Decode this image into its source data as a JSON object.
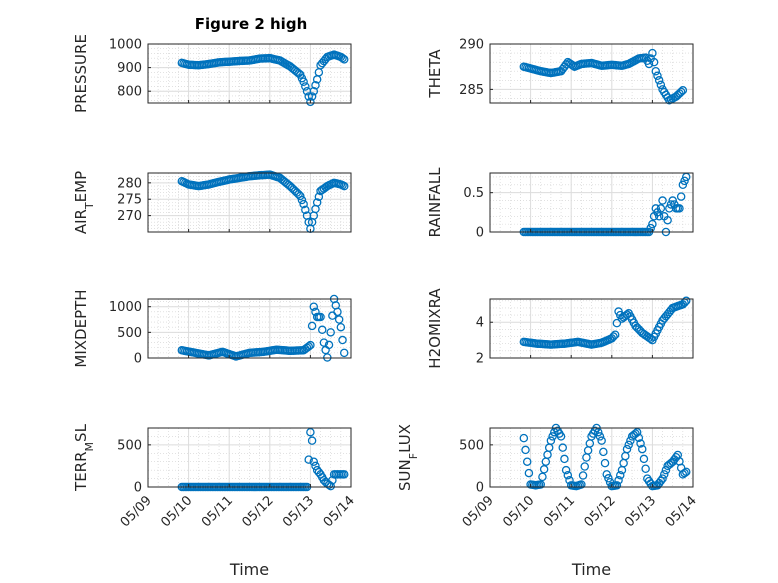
{
  "figure": {
    "title": "Figure 2 high",
    "marker_color": "#0072BD"
  },
  "chart_data": [
    {
      "type": "scatter",
      "title": "Figure 2 high",
      "ylabel": "PRESSURE",
      "xlabel": "",
      "xlim": [
        "05/09",
        "05/14"
      ],
      "ylim": [
        750,
        1000
      ],
      "yticks": [
        800,
        900,
        1000
      ],
      "grid": true,
      "x": [
        "05/09 20:00",
        "05/10 00:00",
        "05/10 06:00",
        "05/10 12:00",
        "05/10 18:00",
        "05/11 00:00",
        "05/11 06:00",
        "05/11 12:00",
        "05/11 18:00",
        "05/12 00:00",
        "05/12 06:00",
        "05/12 12:00",
        "05/12 18:00",
        "05/12 20:00",
        "05/12 22:00",
        "05/13 00:00",
        "05/13 02:00",
        "05/13 04:00",
        "05/13 06:00",
        "05/13 10:00",
        "05/13 14:00",
        "05/13 18:00",
        "05/13 20:00"
      ],
      "y": [
        920,
        912,
        910,
        915,
        922,
        925,
        928,
        930,
        938,
        940,
        930,
        905,
        870,
        840,
        800,
        755,
        800,
        850,
        910,
        945,
        955,
        945,
        935
      ]
    },
    {
      "type": "scatter",
      "title": "",
      "ylabel": "THETA",
      "xlabel": "",
      "xlim": [
        "05/09",
        "05/14"
      ],
      "ylim": [
        283.5,
        290
      ],
      "yticks": [
        285,
        290
      ],
      "grid": true,
      "x": [
        "05/09 20:00",
        "05/10 00:00",
        "05/10 06:00",
        "05/10 12:00",
        "05/10 18:00",
        "05/10 22:00",
        "05/11 02:00",
        "05/11 06:00",
        "05/11 12:00",
        "05/11 18:00",
        "05/12 00:00",
        "05/12 06:00",
        "05/12 10:00",
        "05/12 16:00",
        "05/12 20:00",
        "05/12 22:00",
        "05/13 00:00",
        "05/13 02:00",
        "05/13 06:00",
        "05/13 10:00",
        "05/13 14:00",
        "05/13 18:00"
      ],
      "y": [
        287.5,
        287.3,
        287.0,
        286.8,
        287.0,
        288.0,
        287.5,
        287.8,
        287.9,
        287.6,
        287.7,
        287.6,
        287.8,
        288.4,
        288.5,
        287.8,
        289.0,
        287.0,
        285.0,
        283.8,
        284.2,
        284.9
      ]
    },
    {
      "type": "scatter",
      "title": "",
      "ylabel": "AIR_TEMP",
      "xlabel": "",
      "xlim": [
        "05/09",
        "05/14"
      ],
      "ylim": [
        265,
        283
      ],
      "yticks": [
        270,
        275,
        280
      ],
      "grid": true,
      "x": [
        "05/09 20:00",
        "05/10 00:00",
        "05/10 06:00",
        "05/10 12:00",
        "05/10 18:00",
        "05/11 00:00",
        "05/11 06:00",
        "05/11 12:00",
        "05/11 18:00",
        "05/12 00:00",
        "05/12 06:00",
        "05/12 12:00",
        "05/12 18:00",
        "05/12 20:00",
        "05/12 22:00",
        "05/13 00:00",
        "05/13 02:00",
        "05/13 04:00",
        "05/13 06:00",
        "05/13 10:00",
        "05/13 14:00",
        "05/13 18:00",
        "05/13 20:00"
      ],
      "y": [
        280.5,
        279.5,
        279.0,
        279.5,
        280.3,
        281.0,
        281.5,
        282.0,
        282.3,
        282.5,
        281.5,
        279.0,
        276.0,
        273.5,
        270.0,
        266.0,
        270.0,
        274.0,
        277.5,
        279.0,
        280.0,
        279.5,
        279.0
      ]
    },
    {
      "type": "scatter",
      "title": "",
      "ylabel": "RAINFALL",
      "xlabel": "",
      "xlim": [
        "05/09",
        "05/14"
      ],
      "ylim": [
        0,
        0.75
      ],
      "yticks": [
        0,
        0.5
      ],
      "grid": true,
      "x": [
        "05/09 20:00",
        "05/10 12:00",
        "05/11 12:00",
        "05/12 12:00",
        "05/12 22:00",
        "05/13 00:00",
        "05/13 02:00",
        "05/13 04:00",
        "05/13 06:00",
        "05/13 08:00",
        "05/13 10:00",
        "05/13 12:00",
        "05/13 14:00",
        "05/13 16:00",
        "05/13 18:00",
        "05/13 20:00"
      ],
      "y": [
        0,
        0,
        0,
        0,
        0,
        0.1,
        0.3,
        0.2,
        0.4,
        0.0,
        0.3,
        0.4,
        0.3,
        0.3,
        0.6,
        0.7
      ]
    },
    {
      "type": "scatter",
      "title": "",
      "ylabel": "MIXDEPTH",
      "xlabel": "",
      "xlim": [
        "05/09",
        "05/14"
      ],
      "ylim": [
        0,
        1150
      ],
      "yticks": [
        0,
        500,
        1000
      ],
      "grid": true,
      "x": [
        "05/09 20:00",
        "05/10 04:00",
        "05/10 12:00",
        "05/10 20:00",
        "05/11 04:00",
        "05/11 12:00",
        "05/11 20:00",
        "05/12 04:00",
        "05/12 12:00",
        "05/12 20:00",
        "05/13 00:00",
        "05/13 02:00",
        "05/13 04:00",
        "05/13 06:00",
        "05/13 08:00",
        "05/13 10:00",
        "05/13 12:00",
        "05/13 14:00",
        "05/13 16:00",
        "05/13 18:00",
        "05/13 20:00"
      ],
      "y": [
        150,
        100,
        50,
        120,
        30,
        100,
        120,
        160,
        140,
        150,
        250,
        1000,
        800,
        800,
        300,
        10,
        500,
        1150,
        900,
        600,
        100
      ]
    },
    {
      "type": "scatter",
      "title": "",
      "ylabel": "H2OMIXRA",
      "xlabel": "",
      "xlim": [
        "05/09",
        "05/14"
      ],
      "ylim": [
        2,
        5.3
      ],
      "yticks": [
        2,
        4
      ],
      "grid": true,
      "x": [
        "05/09 20:00",
        "05/10 04:00",
        "05/10 12:00",
        "05/10 20:00",
        "05/11 04:00",
        "05/11 12:00",
        "05/11 18:00",
        "05/12 00:00",
        "05/12 02:00",
        "05/12 04:00",
        "05/12 06:00",
        "05/12 10:00",
        "05/12 14:00",
        "05/12 18:00",
        "05/13 00:00",
        "05/13 06:00",
        "05/13 12:00",
        "05/13 18:00",
        "05/13 20:00"
      ],
      "y": [
        2.9,
        2.8,
        2.75,
        2.8,
        2.9,
        2.75,
        2.85,
        3.1,
        3.3,
        4.6,
        4.2,
        4.5,
        3.8,
        3.4,
        3.0,
        4.1,
        4.8,
        5.0,
        5.2
      ]
    },
    {
      "type": "scatter",
      "title": "",
      "ylabel": "TERR_MSL",
      "xlabel": "Time",
      "xlim": [
        "05/09",
        "05/14"
      ],
      "ylim": [
        0,
        700
      ],
      "yticks": [
        0,
        500
      ],
      "grid": true,
      "xticks": [
        "05/09",
        "05/10",
        "05/11",
        "05/12",
        "05/13",
        "05/14"
      ],
      "x": [
        "05/09 20:00",
        "05/10 12:00",
        "05/11 12:00",
        "05/12 12:00",
        "05/12 22:00",
        "05/13 00:00",
        "05/13 01:00",
        "05/13 02:00",
        "05/13 03:00",
        "05/13 04:00",
        "05/13 06:00",
        "05/13 08:00",
        "05/13 10:00",
        "05/13 12:00",
        "05/13 14:00",
        "05/13 18:00",
        "05/13 20:00"
      ],
      "y": [
        0,
        0,
        0,
        0,
        0,
        650,
        550,
        300,
        250,
        200,
        150,
        80,
        40,
        10,
        150,
        150,
        150
      ]
    },
    {
      "type": "scatter",
      "title": "",
      "ylabel": "SUN_FLUX",
      "xlabel": "Time",
      "xlim": [
        "05/09",
        "05/14"
      ],
      "ylim": [
        0,
        700
      ],
      "yticks": [
        0,
        500
      ],
      "grid": true,
      "xticks": [
        "05/09",
        "05/10",
        "05/11",
        "05/12",
        "05/13",
        "05/14"
      ],
      "x": [
        "05/09 20:00",
        "05/09 22:00",
        "05/10 00:00",
        "05/10 03:00",
        "05/10 06:00",
        "05/10 09:00",
        "05/10 12:00",
        "05/10 15:00",
        "05/10 18:00",
        "05/10 21:00",
        "05/11 00:00",
        "05/11 03:00",
        "05/11 06:00",
        "05/11 09:00",
        "05/11 12:00",
        "05/11 15:00",
        "05/11 18:00",
        "05/11 21:00",
        "05/12 00:00",
        "05/12 03:00",
        "05/12 06:00",
        "05/12 09:00",
        "05/12 12:00",
        "05/12 15:00",
        "05/12 18:00",
        "05/12 21:00",
        "05/13 00:00",
        "05/13 03:00",
        "05/13 06:00",
        "05/13 09:00",
        "05/13 12:00",
        "05/13 15:00",
        "05/13 18:00",
        "05/13 20:00"
      ],
      "y": [
        580,
        300,
        30,
        20,
        30,
        300,
        550,
        700,
        600,
        200,
        20,
        10,
        30,
        350,
        600,
        700,
        550,
        150,
        10,
        20,
        200,
        450,
        600,
        650,
        450,
        100,
        10,
        20,
        100,
        250,
        300,
        380,
        150,
        180
      ]
    }
  ]
}
